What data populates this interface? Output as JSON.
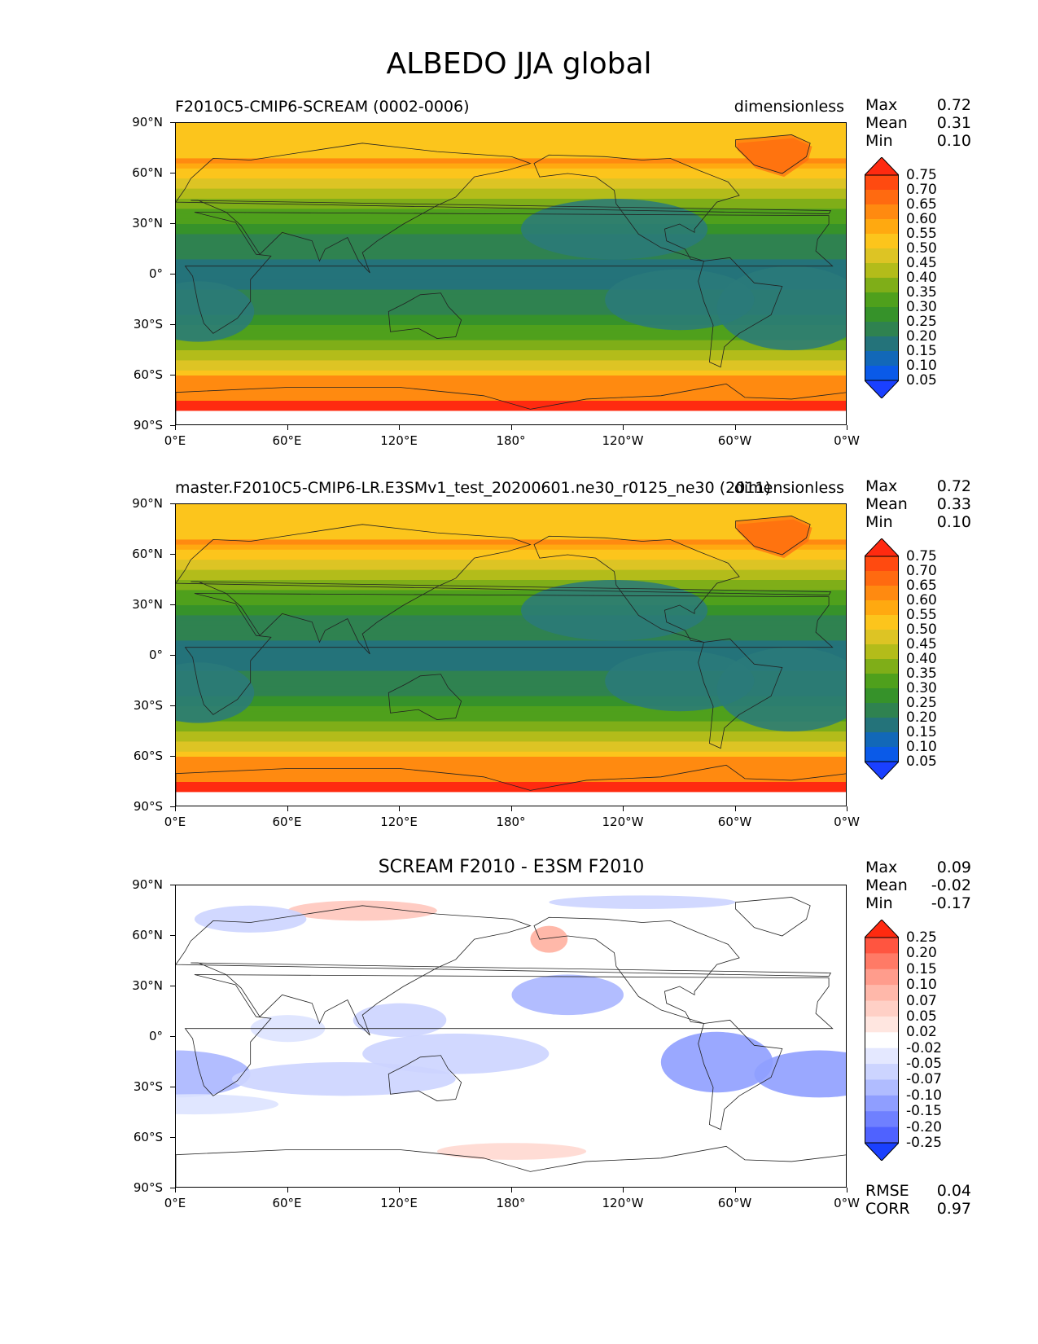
{
  "title": "ALBEDO JJA global",
  "lat_ticks": [
    "90°N",
    "60°N",
    "30°N",
    "0°",
    "30°S",
    "60°S",
    "90°S"
  ],
  "lon_ticks": [
    "0°E",
    "60°E",
    "120°E",
    "180°",
    "120°W",
    "60°W",
    "0°W"
  ],
  "panels": [
    {
      "id": "test",
      "left_title": "F2010C5-CMIP6-SCREAM (0002-0006)",
      "right_title": "dimensionless",
      "center_title": "",
      "stats": [
        {
          "label": "Max",
          "value": "0.72"
        },
        {
          "label": "Mean",
          "value": "0.31"
        },
        {
          "label": "Min",
          "value": "0.10"
        }
      ],
      "colorbar": {
        "levels": [
          "0.75",
          "0.70",
          "0.65",
          "0.60",
          "0.55",
          "0.50",
          "0.45",
          "0.40",
          "0.35",
          "0.30",
          "0.25",
          "0.20",
          "0.15",
          "0.10",
          "0.05"
        ],
        "colors_top_to_bottom": [
          "#ff2a10",
          "#ff4a10",
          "#ff6a10",
          "#ff8a10",
          "#ffa910",
          "#fcc51c",
          "#ddc424",
          "#b3bc1a",
          "#7fae18",
          "#4fa01c",
          "#36922a",
          "#2f8250",
          "#24737a",
          "#1268b8",
          "#0a5ae8",
          "#1a40ff"
        ]
      }
    },
    {
      "id": "reference",
      "left_title": "master.F2010C5-CMIP6-LR.E3SMv1_test_20200601.ne30_r0125_ne30 (2011)",
      "right_title": "dimensionless",
      "center_title": "",
      "stats": [
        {
          "label": "Max",
          "value": "0.72"
        },
        {
          "label": "Mean",
          "value": "0.33"
        },
        {
          "label": "Min",
          "value": "0.10"
        }
      ],
      "colorbar": {
        "levels": [
          "0.75",
          "0.70",
          "0.65",
          "0.60",
          "0.55",
          "0.50",
          "0.45",
          "0.40",
          "0.35",
          "0.30",
          "0.25",
          "0.20",
          "0.15",
          "0.10",
          "0.05"
        ],
        "colors_top_to_bottom": [
          "#ff2a10",
          "#ff4a10",
          "#ff6a10",
          "#ff8a10",
          "#ffa910",
          "#fcc51c",
          "#ddc424",
          "#b3bc1a",
          "#7fae18",
          "#4fa01c",
          "#36922a",
          "#2f8250",
          "#24737a",
          "#1268b8",
          "#0a5ae8",
          "#1a40ff"
        ]
      }
    },
    {
      "id": "difference",
      "left_title": "",
      "right_title": "",
      "center_title": "SCREAM F2010 - E3SM F2010",
      "stats": [
        {
          "label": "Max",
          "value": "0.09"
        },
        {
          "label": "Mean",
          "value": "-0.02"
        },
        {
          "label": "Min",
          "value": "-0.17"
        }
      ],
      "colorbar": {
        "levels": [
          "0.25",
          "0.20",
          "0.15",
          "0.10",
          "0.07",
          "0.05",
          "0.02",
          "-0.02",
          "-0.05",
          "-0.07",
          "-0.10",
          "-0.15",
          "-0.20",
          "-0.25"
        ],
        "colors_top_to_bottom": [
          "#ff2a10",
          "#ff5540",
          "#ff7a66",
          "#ff9c8c",
          "#ffb8aa",
          "#ffd0c6",
          "#ffe6e0",
          "#ffffff",
          "#e4e8ff",
          "#ccd4ff",
          "#b0bcff",
          "#8f9eff",
          "#6f80ff",
          "#4f62ff",
          "#1a40ff"
        ]
      },
      "footer_stats": [
        {
          "label": "RMSE",
          "value": "0.04"
        },
        {
          "label": "CORR",
          "value": "0.97"
        }
      ]
    }
  ]
}
